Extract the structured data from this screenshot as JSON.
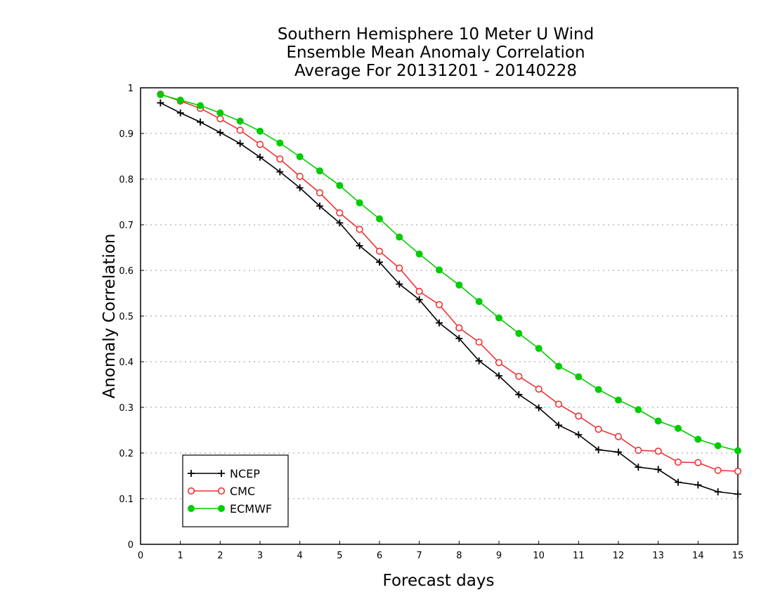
{
  "chart_data": {
    "type": "line",
    "title_lines": [
      "Southern Hemisphere 10 Meter U Wind",
      "Ensemble Mean Anomaly Correlation",
      "Average For 20131201 - 20140228"
    ],
    "xlabel": "Forecast days",
    "ylabel": "Anomaly Correlation",
    "xlim": [
      0,
      15
    ],
    "ylim": [
      0,
      1
    ],
    "xticks": [
      0,
      1,
      2,
      3,
      4,
      5,
      6,
      7,
      8,
      9,
      10,
      11,
      12,
      13,
      14,
      15
    ],
    "yticks": [
      0,
      0.1,
      0.2,
      0.3,
      0.4,
      0.5,
      0.6,
      0.7,
      0.8,
      0.9,
      1
    ],
    "ytick_labels": [
      "0",
      "0.1",
      "0.2",
      "0.3",
      "0.4",
      "0.5",
      "0.6",
      "0.7",
      "0.8",
      "0.9",
      "1"
    ],
    "grid": true,
    "legend_position": "bottom-left",
    "x": [
      0.5,
      1,
      1.5,
      2,
      2.5,
      3,
      3.5,
      4,
      4.5,
      5,
      5.5,
      6,
      6.5,
      7,
      7.5,
      8,
      8.5,
      9,
      9.5,
      10,
      10.5,
      11,
      11.5,
      12,
      12.5,
      13,
      13.5,
      14,
      14.5,
      15
    ],
    "series": [
      {
        "name": "NCEP",
        "color": "#000000",
        "marker": "plus",
        "values": [
          0.967,
          0.945,
          0.925,
          0.902,
          0.878,
          0.848,
          0.816,
          0.781,
          0.741,
          0.704,
          0.654,
          0.618,
          0.57,
          0.536,
          0.485,
          0.451,
          0.402,
          0.369,
          0.328,
          0.299,
          0.261,
          0.24,
          0.207,
          0.202,
          0.169,
          0.164,
          0.136,
          0.13,
          0.115,
          0.11
        ]
      },
      {
        "name": "CMC",
        "color": "#ee3333",
        "marker": "open-circle",
        "values": [
          0.986,
          0.971,
          0.955,
          0.932,
          0.907,
          0.876,
          0.844,
          0.806,
          0.77,
          0.726,
          0.69,
          0.642,
          0.605,
          0.554,
          0.525,
          0.474,
          0.443,
          0.398,
          0.368,
          0.34,
          0.307,
          0.281,
          0.252,
          0.236,
          0.206,
          0.204,
          0.18,
          0.179,
          0.162,
          0.16
        ]
      },
      {
        "name": "ECMWF",
        "color": "#00cc00",
        "marker": "filled-circle",
        "values": [
          0.985,
          0.973,
          0.961,
          0.945,
          0.927,
          0.905,
          0.879,
          0.849,
          0.818,
          0.786,
          0.748,
          0.713,
          0.673,
          0.636,
          0.601,
          0.568,
          0.532,
          0.496,
          0.462,
          0.429,
          0.39,
          0.367,
          0.339,
          0.316,
          0.295,
          0.27,
          0.254,
          0.23,
          0.216,
          0.205
        ]
      }
    ]
  }
}
